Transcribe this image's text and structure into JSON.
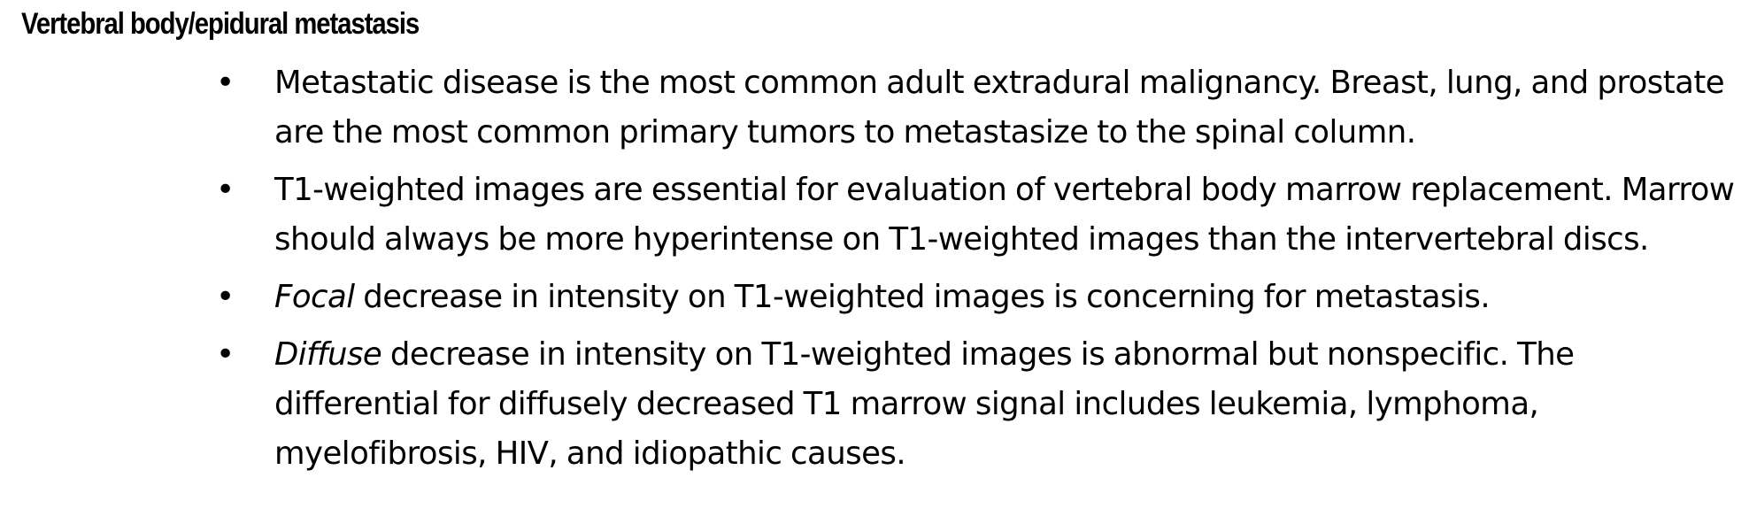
{
  "document": {
    "heading": "Vertebral body/epidural metastasis",
    "bullet_symbol": "•",
    "bullets": [
      {
        "emphasis": "",
        "text": "Metastatic disease is the most common adult extradural malignancy. Breast, lung, and prostate are the most common primary tumors to metastasize to the spinal column."
      },
      {
        "emphasis": "",
        "text": "T1-weighted images are essential for evaluation of vertebral body marrow replacement. Marrow should always be more hyperintense on T1-weighted images than the intervertebral discs."
      },
      {
        "emphasis": "Focal",
        "text": " decrease in intensity on T1-weighted images is concerning for metastasis."
      },
      {
        "emphasis": "Diffuse",
        "text": " decrease in intensity on T1-weighted images is abnormal but nonspecific. The differential for diffusely decreased T1 marrow signal includes leukemia, lymphoma, myelofibrosis, HIV, and idiopathic causes."
      }
    ]
  }
}
